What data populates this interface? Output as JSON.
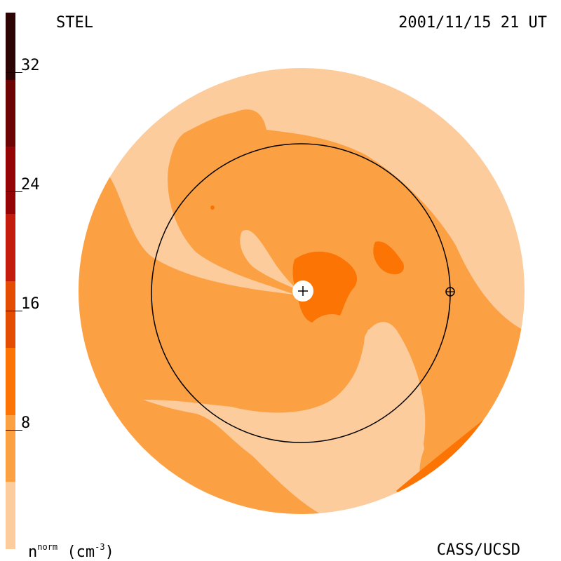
{
  "header": {
    "left_label": "STEL",
    "right_label": "2001/11/15 21 UT"
  },
  "footer": {
    "unit_base": "n",
    "unit_sup": "norm",
    "unit_rest": " (cm",
    "unit_exp": "-3",
    "unit_close": ")",
    "credit": "CASS/UCSD"
  },
  "colorbar": {
    "colors": [
      "#fccc9c",
      "#fca044",
      "#fc7404",
      "#e44c04",
      "#c41c0c",
      "#940404",
      "#6c0404",
      "#2c0404"
    ],
    "range": [
      0,
      36
    ],
    "ticks": [
      {
        "value": 8,
        "label": "8"
      },
      {
        "value": 16,
        "label": "16"
      },
      {
        "value": 24,
        "label": "24"
      },
      {
        "value": 32,
        "label": "32"
      }
    ]
  },
  "map": {
    "outer_fill": "#fccc9c",
    "mid_fill": "#fca044",
    "high_fill": "#fc7404"
  }
}
